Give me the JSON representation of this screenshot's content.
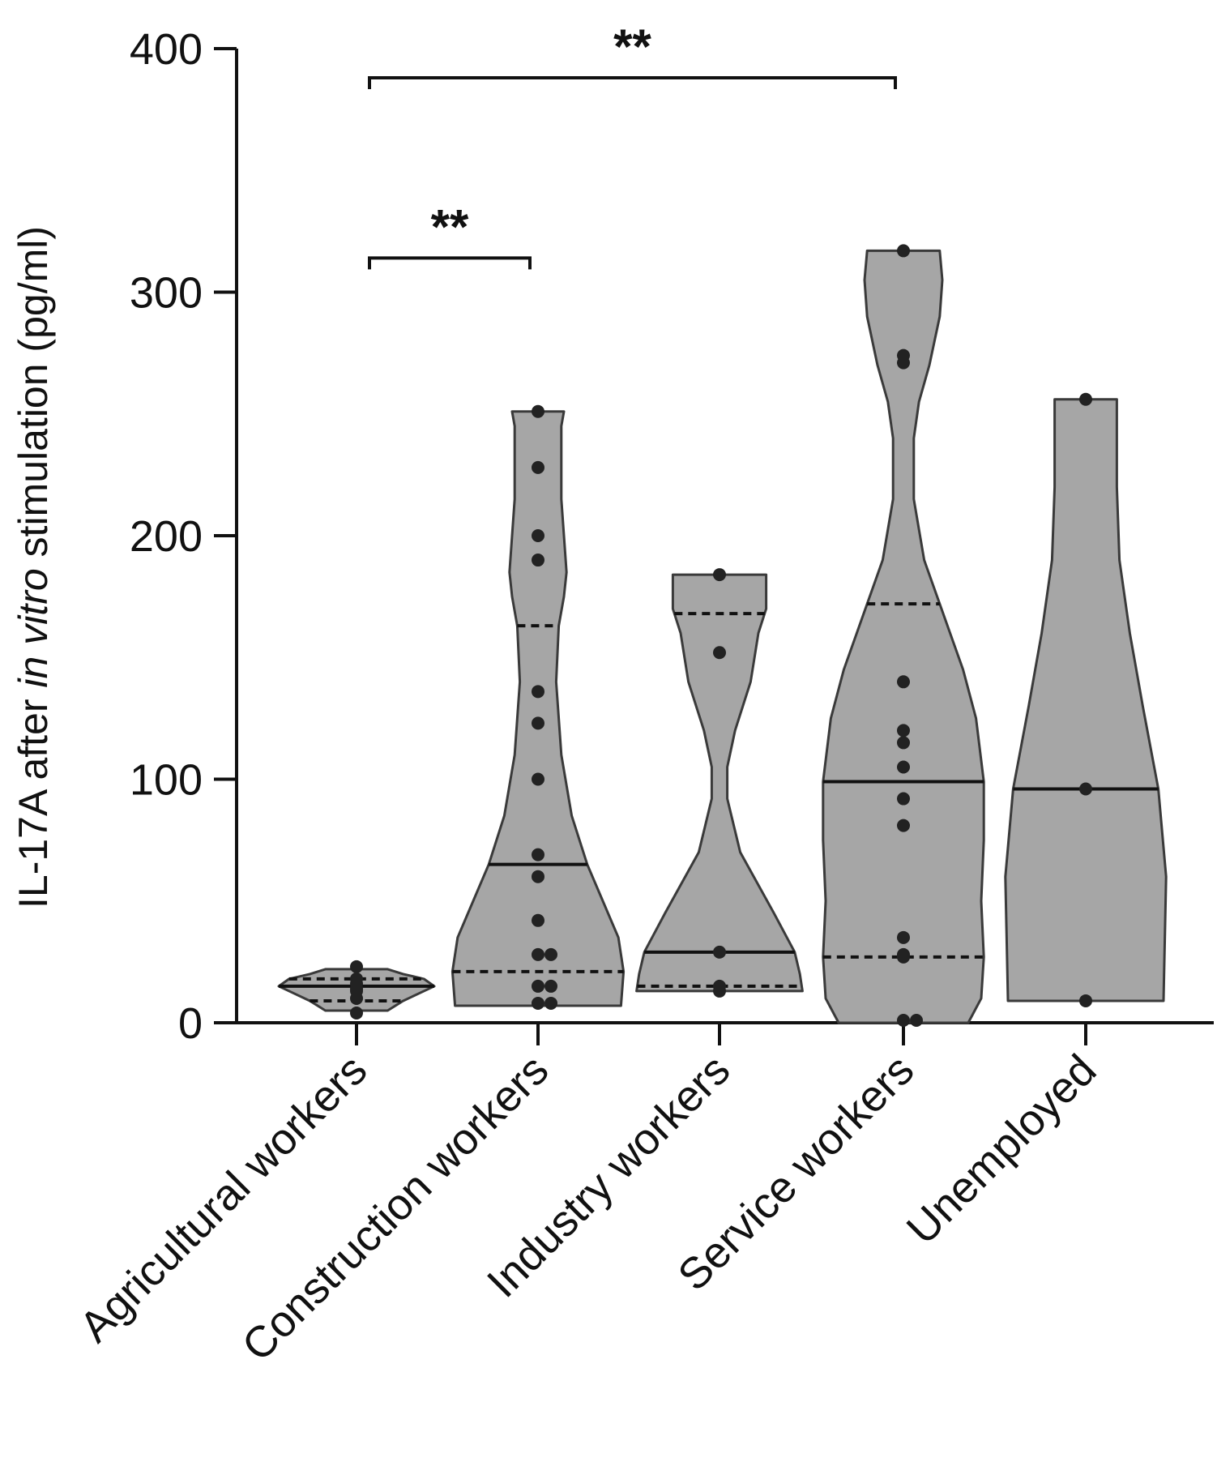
{
  "chart_data": {
    "type": "violin",
    "ylabel_parts": [
      "IL-17A after ",
      "in vitro",
      " stimulation (pg/ml)"
    ],
    "ylim": [
      0,
      400
    ],
    "yticks": [
      0,
      100,
      200,
      300,
      400
    ],
    "ytick_labels": [
      "0",
      "100",
      "200",
      "300",
      "400"
    ],
    "categories": [
      "Agricultural workers",
      "Construction workers",
      "Industry workers",
      "Service workers",
      "Unemployed"
    ],
    "groups": [
      {
        "category": "Agricultural workers",
        "min": 5,
        "max": 22,
        "median": 15,
        "q1": 9,
        "q3": 18,
        "points": [
          23,
          18,
          16,
          14,
          13,
          10,
          4
        ],
        "profile": [
          [
            5,
            12
          ],
          [
            9,
            18
          ],
          [
            13,
            26
          ],
          [
            15,
            30
          ],
          [
            18,
            26
          ],
          [
            20,
            18
          ],
          [
            22,
            12
          ]
        ]
      },
      {
        "category": "Construction workers",
        "min": 7,
        "max": 251,
        "median": 65,
        "q1": 21,
        "q3": 163,
        "points": [
          251,
          228,
          200,
          190,
          136,
          123,
          100,
          69,
          60,
          42,
          28,
          28,
          15,
          15,
          8,
          8
        ],
        "profile": [
          [
            7,
            32
          ],
          [
            21,
            33
          ],
          [
            35,
            31
          ],
          [
            50,
            25
          ],
          [
            65,
            19
          ],
          [
            85,
            13
          ],
          [
            110,
            9
          ],
          [
            140,
            7
          ],
          [
            163,
            8
          ],
          [
            175,
            10
          ],
          [
            185,
            11
          ],
          [
            200,
            10
          ],
          [
            215,
            9
          ],
          [
            230,
            9
          ],
          [
            245,
            9
          ],
          [
            251,
            10
          ]
        ]
      },
      {
        "category": "Industry workers",
        "min": 13,
        "max": 184,
        "median": 29,
        "q1": 15,
        "q3": 168,
        "points": [
          184,
          152,
          29,
          15,
          13
        ],
        "profile": [
          [
            13,
            32
          ],
          [
            20,
            31
          ],
          [
            29,
            29
          ],
          [
            45,
            21
          ],
          [
            70,
            8
          ],
          [
            92,
            3
          ],
          [
            105,
            3
          ],
          [
            120,
            6
          ],
          [
            140,
            12
          ],
          [
            160,
            15
          ],
          [
            170,
            18
          ],
          [
            184,
            18
          ]
        ]
      },
      {
        "category": "Service workers",
        "min": 0,
        "max": 317,
        "median": 99,
        "q1": 27,
        "q3": 172,
        "points": [
          317,
          274,
          271,
          140,
          120,
          115,
          105,
          92,
          81,
          35,
          28,
          27,
          1,
          1
        ],
        "profile": [
          [
            0,
            25
          ],
          [
            10,
            30
          ],
          [
            27,
            31
          ],
          [
            50,
            30
          ],
          [
            75,
            31
          ],
          [
            99,
            31
          ],
          [
            125,
            28
          ],
          [
            145,
            23
          ],
          [
            160,
            18
          ],
          [
            172,
            14
          ],
          [
            190,
            8
          ],
          [
            215,
            4
          ],
          [
            240,
            4
          ],
          [
            255,
            6
          ],
          [
            270,
            10
          ],
          [
            290,
            14
          ],
          [
            305,
            15
          ],
          [
            317,
            14
          ]
        ]
      },
      {
        "category": "Unemployed",
        "min": 9,
        "max": 256,
        "median": 96,
        "q1": null,
        "q3": null,
        "points": [
          256,
          96,
          9
        ],
        "profile": [
          [
            9,
            30
          ],
          [
            60,
            31
          ],
          [
            96,
            28
          ],
          [
            130,
            22
          ],
          [
            160,
            17
          ],
          [
            190,
            13
          ],
          [
            220,
            12
          ],
          [
            256,
            12
          ]
        ]
      }
    ],
    "annotations": [
      {
        "from": "Agricultural workers",
        "to": "Service workers",
        "label": "**",
        "y": 388
      },
      {
        "from": "Agricultural workers",
        "to": "Construction workers",
        "label": "**",
        "y": 314
      }
    ]
  }
}
